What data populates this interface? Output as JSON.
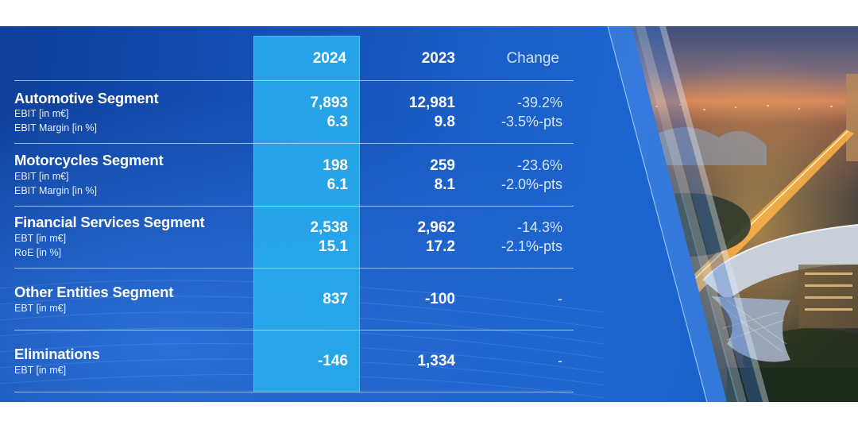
{
  "table": {
    "headers": {
      "col1": "2024",
      "col2": "2023",
      "change": "Change"
    },
    "rows": [
      {
        "title": "Automotive Segment",
        "labels": [
          "EBIT [in m€]",
          "EBIT Margin [in %]"
        ],
        "v2024": [
          "7,893",
          "6.3"
        ],
        "v2023": [
          "12,981",
          "9.8"
        ],
        "change": [
          "-39.2%",
          "-3.5%-pts"
        ]
      },
      {
        "title": "Motorcycles Segment",
        "labels": [
          "EBIT [in m€]",
          "EBIT Margin [in %]"
        ],
        "v2024": [
          "198",
          "6.1"
        ],
        "v2023": [
          "259",
          "8.1"
        ],
        "change": [
          "-23.6%",
          "-2.0%-pts"
        ]
      },
      {
        "title": "Financial Services Segment",
        "labels": [
          "EBT [in m€]",
          "RoE [in %]"
        ],
        "v2024": [
          "2,538",
          "15.1"
        ],
        "v2023": [
          "2,962",
          "17.2"
        ],
        "change": [
          "-14.3%",
          "-2.1%-pts"
        ]
      },
      {
        "title": "Other Entities Segment",
        "labels": [
          "EBT [in m€]"
        ],
        "v2024": [
          "837"
        ],
        "v2023": [
          "-100"
        ],
        "change": [
          "-"
        ]
      },
      {
        "title": "Eliminations",
        "labels": [
          "EBT [in m€]"
        ],
        "v2024": [
          "-146"
        ],
        "v2023": [
          "1,334"
        ],
        "change": [
          "-"
        ]
      }
    ]
  },
  "colors": {
    "background": "#1552b8",
    "highlight": "#28aaeb",
    "text": "#ffffff"
  }
}
